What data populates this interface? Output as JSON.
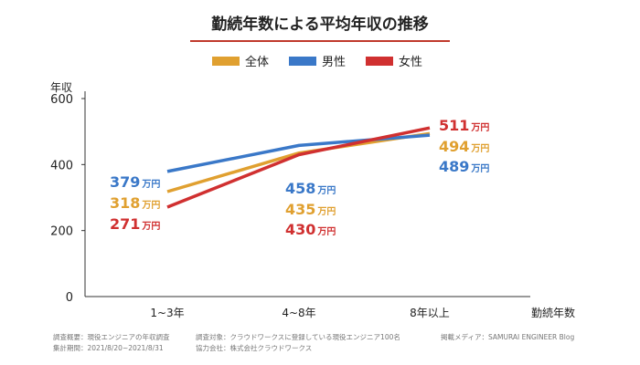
{
  "header": {
    "title": "勤続年数による平均年収の推移"
  },
  "chart_data": {
    "type": "line",
    "categories": [
      "1~3年",
      "4~8年",
      "8年以上"
    ],
    "series": [
      {
        "name": "全体",
        "color": "#e0a030",
        "values": [
          318,
          435,
          494
        ],
        "labels": [
          {
            "value": "318",
            "unit": "万円"
          },
          {
            "value": "435",
            "unit": "万円"
          },
          {
            "value": "494",
            "unit": "万円"
          }
        ]
      },
      {
        "name": "男性",
        "color": "#3a78c8",
        "values": [
          379,
          458,
          489
        ],
        "labels": [
          {
            "value": "379",
            "unit": "万円"
          },
          {
            "value": "458",
            "unit": "万円"
          },
          {
            "value": "489",
            "unit": "万円"
          }
        ]
      },
      {
        "name": "女性",
        "color": "#d03030",
        "values": [
          271,
          430,
          511
        ],
        "labels": [
          {
            "value": "271",
            "unit": "万円"
          },
          {
            "value": "430",
            "unit": "万円"
          },
          {
            "value": "511",
            "unit": "万円"
          }
        ]
      }
    ],
    "ylabel": "年収",
    "xlabel": "勤続年数",
    "ylim": [
      0,
      600
    ],
    "yticks": [
      "0",
      "200",
      "400",
      "600"
    ],
    "legend_position": "top-center"
  },
  "footer": {
    "survey_summary": "調査概要：現役エンジニアの年収調査",
    "survey_period": "集計期間：2021/8/20~2021/8/31",
    "survey_target": "調査対象：クラウドワークスに登録している現役エンジニア100名",
    "cooperation": "協力会社：株式会社クラウドワークス",
    "media": "掲載メディア：SAMURAI ENGINEER Blog"
  }
}
